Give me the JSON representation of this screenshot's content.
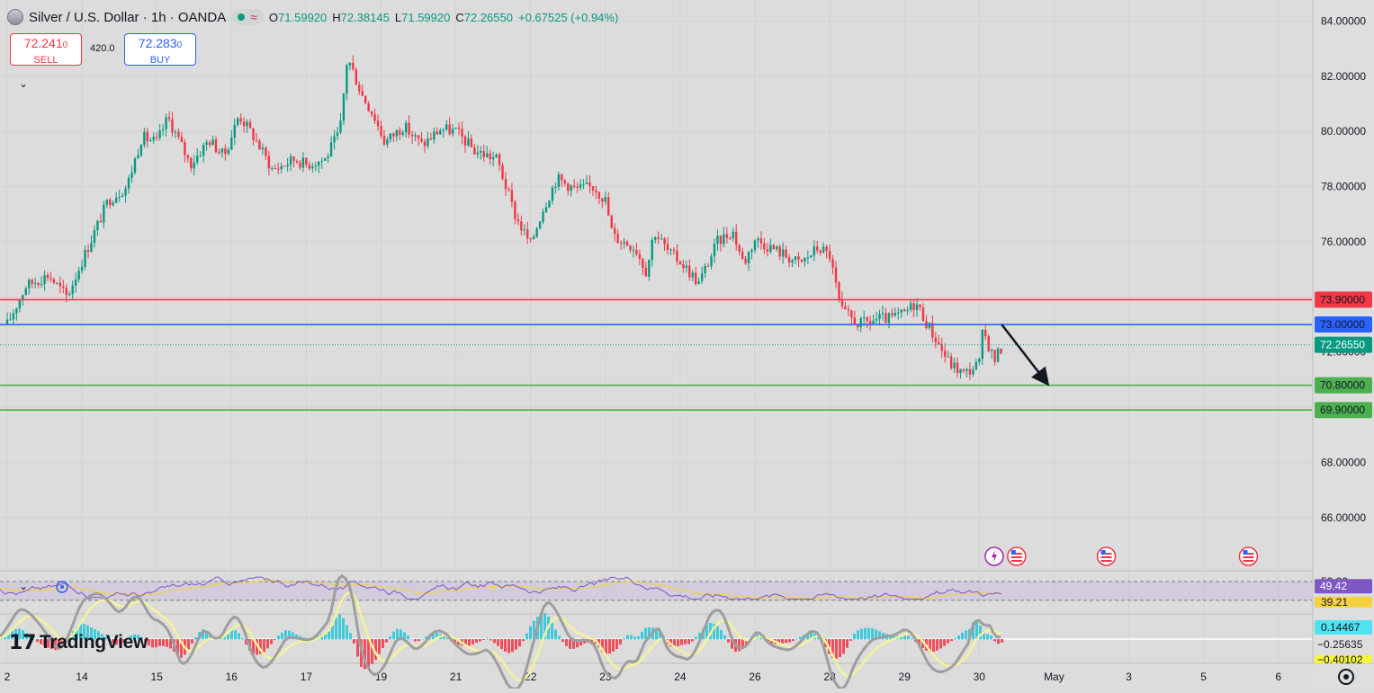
{
  "header": {
    "symbol_title": "Silver / U.S. Dollar · 1h · OANDA",
    "ohlc": [
      {
        "k": "O",
        "v": "71.59920"
      },
      {
        "k": "H",
        "v": "72.38145"
      },
      {
        "k": "L",
        "v": "71.59920"
      },
      {
        "k": "C",
        "v": "72.26550"
      }
    ],
    "change": "+0.67525 (+0.94%)"
  },
  "trade": {
    "sell_price": "72.241",
    "sell_price_small": "0",
    "sell_label": "SELL",
    "spread": "420.0",
    "buy_price": "72.283",
    "buy_price_small": "0",
    "buy_label": "BUY"
  },
  "brand": {
    "logo_text": "TradingView"
  },
  "colors": {
    "up": "#089981",
    "down": "#f23645",
    "resistance": "#f23645",
    "pivot": "#2962ff",
    "support": "#4caf50",
    "background": "#dcdcdc"
  },
  "chart_data": [
    {
      "type": "candlestick",
      "ylim": [
        64.4,
        84.6
      ],
      "y_ticks": [
        "84.00000",
        "82.00000",
        "80.00000",
        "78.00000",
        "76.00000",
        "74.00000",
        "72.00000",
        "70.00000",
        "68.00000",
        "66.00000"
      ],
      "y_tick_values": [
        84,
        82,
        80,
        78,
        76,
        74,
        72,
        70,
        68,
        66
      ],
      "x_ticks": [
        {
          "label": "2",
          "day": 13
        },
        {
          "label": "14",
          "day": 14
        },
        {
          "label": "15",
          "day": 15
        },
        {
          "label": "16",
          "day": 16
        },
        {
          "label": "17",
          "day": 17
        },
        {
          "label": "19",
          "day": 18
        },
        {
          "label": "21",
          "day": 19
        },
        {
          "label": "22",
          "day": 20
        },
        {
          "label": "23",
          "day": 21
        },
        {
          "label": "24",
          "day": 22
        },
        {
          "label": "26",
          "day": 23
        },
        {
          "label": "28",
          "day": 24
        },
        {
          "label": "29",
          "day": 25
        },
        {
          "label": "30",
          "day": 26
        },
        {
          "label": "May",
          "day": 27
        },
        {
          "label": "3",
          "day": 28
        },
        {
          "label": "5",
          "day": 29
        },
        {
          "label": "6",
          "day": 30
        }
      ],
      "price_path": [
        {
          "day": 13.0,
          "price": 73.0
        },
        {
          "day": 13.25,
          "price": 74.4
        },
        {
          "day": 13.55,
          "price": 74.8
        },
        {
          "day": 13.8,
          "price": 74.0
        },
        {
          "day": 14.0,
          "price": 75.3
        },
        {
          "day": 14.35,
          "price": 77.5
        },
        {
          "day": 14.6,
          "price": 78.0
        },
        {
          "day": 14.8,
          "price": 79.8
        },
        {
          "day": 15.0,
          "price": 79.6
        },
        {
          "day": 15.15,
          "price": 80.5
        },
        {
          "day": 15.45,
          "price": 78.8
        },
        {
          "day": 15.7,
          "price": 79.7
        },
        {
          "day": 15.9,
          "price": 79.1
        },
        {
          "day": 16.1,
          "price": 80.6
        },
        {
          "day": 16.3,
          "price": 79.8
        },
        {
          "day": 16.55,
          "price": 78.6
        },
        {
          "day": 16.85,
          "price": 79.0
        },
        {
          "day": 17.0,
          "price": 78.8
        },
        {
          "day": 17.25,
          "price": 79.0
        },
        {
          "day": 17.45,
          "price": 80.0
        },
        {
          "day": 17.55,
          "price": 82.7
        },
        {
          "day": 17.75,
          "price": 81.3
        },
        {
          "day": 17.9,
          "price": 80.6
        },
        {
          "day": 18.05,
          "price": 79.6
        },
        {
          "day": 18.3,
          "price": 80.2
        },
        {
          "day": 18.55,
          "price": 79.5
        },
        {
          "day": 18.8,
          "price": 80.1
        },
        {
          "day": 19.0,
          "price": 80.0
        },
        {
          "day": 19.25,
          "price": 79.3
        },
        {
          "day": 19.55,
          "price": 79.0
        },
        {
          "day": 19.8,
          "price": 76.9
        },
        {
          "day": 20.0,
          "price": 75.9
        },
        {
          "day": 20.15,
          "price": 77.1
        },
        {
          "day": 20.35,
          "price": 78.3
        },
        {
          "day": 20.6,
          "price": 77.9
        },
        {
          "day": 20.85,
          "price": 78.0
        },
        {
          "day": 21.0,
          "price": 77.5
        },
        {
          "day": 21.1,
          "price": 76.2
        },
        {
          "day": 21.4,
          "price": 75.8
        },
        {
          "day": 21.55,
          "price": 74.9
        },
        {
          "day": 21.65,
          "price": 76.4
        },
        {
          "day": 21.85,
          "price": 75.6
        },
        {
          "day": 22.0,
          "price": 75.3
        },
        {
          "day": 22.25,
          "price": 74.5
        },
        {
          "day": 22.5,
          "price": 76.0
        },
        {
          "day": 22.7,
          "price": 76.4
        },
        {
          "day": 22.85,
          "price": 75.2
        },
        {
          "day": 23.0,
          "price": 76.1
        },
        {
          "day": 23.35,
          "price": 75.6
        },
        {
          "day": 23.6,
          "price": 75.2
        },
        {
          "day": 23.85,
          "price": 75.8
        },
        {
          "day": 24.0,
          "price": 75.5
        },
        {
          "day": 24.15,
          "price": 73.5
        },
        {
          "day": 24.4,
          "price": 73.0
        },
        {
          "day": 24.65,
          "price": 73.2
        },
        {
          "day": 24.8,
          "price": 73.2
        },
        {
          "day": 25.0,
          "price": 73.4
        },
        {
          "day": 25.15,
          "price": 73.8
        },
        {
          "day": 25.35,
          "price": 72.8
        },
        {
          "day": 25.6,
          "price": 71.6
        },
        {
          "day": 25.8,
          "price": 71.2
        },
        {
          "day": 26.0,
          "price": 71.6
        },
        {
          "day": 26.05,
          "price": 72.8
        },
        {
          "day": 26.2,
          "price": 71.7
        },
        {
          "day": 26.32,
          "price": 72.2655
        }
      ],
      "price_lines": [
        {
          "name": "resistance",
          "price": 73.9,
          "label": "73.90000",
          "color": "#f23645"
        },
        {
          "name": "pivot",
          "price": 73.0,
          "label": "73.00000",
          "color": "#2962ff"
        },
        {
          "name": "support-1",
          "price": 70.8,
          "label": "70.80000",
          "color": "#4caf50"
        },
        {
          "name": "support-2",
          "price": 69.9,
          "label": "69.90000",
          "color": "#4caf50"
        }
      ],
      "last_price": {
        "price": 72.2655,
        "label": "72.26550",
        "color": "#089981"
      },
      "arrow": {
        "from_day": 26.3,
        "from_price": 73.0,
        "to_day": 26.9,
        "to_price": 70.9
      }
    },
    {
      "type": "line",
      "indicator": "RSI",
      "ylim": [
        30,
        60
      ],
      "bands": [
        52.82,
        39.21
      ],
      "band_labels": [
        "52.82",
        "39.21"
      ],
      "current": {
        "value": 49.42,
        "label": "49.42"
      }
    },
    {
      "type": "line",
      "indicator": "MACD",
      "labels": [
        "0.14467",
        "−0.25635",
        "−0.40102"
      ]
    }
  ]
}
